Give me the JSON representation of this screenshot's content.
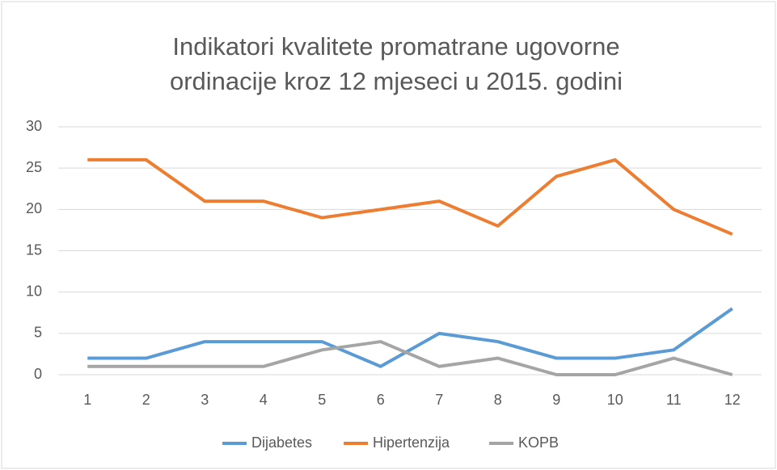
{
  "chart_data": {
    "type": "line",
    "title": [
      "Indikatori kvalitete promatrane ugovorne",
      "ordinacije kroz 12 mjeseci u 2015. godini"
    ],
    "categories": [
      "1",
      "2",
      "3",
      "4",
      "5",
      "6",
      "7",
      "8",
      "9",
      "10",
      "11",
      "12"
    ],
    "series": [
      {
        "name": "Dijabetes",
        "color": "#5b9bd5",
        "values": [
          2,
          2,
          4,
          4,
          4,
          1,
          5,
          4,
          2,
          2,
          3,
          8
        ]
      },
      {
        "name": "Hipertenzija",
        "color": "#ed7d31",
        "values": [
          26,
          26,
          21,
          21,
          19,
          20,
          21,
          18,
          24,
          26,
          20,
          17
        ]
      },
      {
        "name": "KOPB",
        "color": "#a5a5a5",
        "values": [
          1,
          1,
          1,
          1,
          3,
          4,
          1,
          2,
          0,
          0,
          2,
          0
        ]
      }
    ],
    "ylim": [
      0,
      30
    ],
    "yticks": [
      0,
      5,
      10,
      15,
      20,
      25,
      30
    ],
    "grid": true,
    "legend": "bottom"
  }
}
